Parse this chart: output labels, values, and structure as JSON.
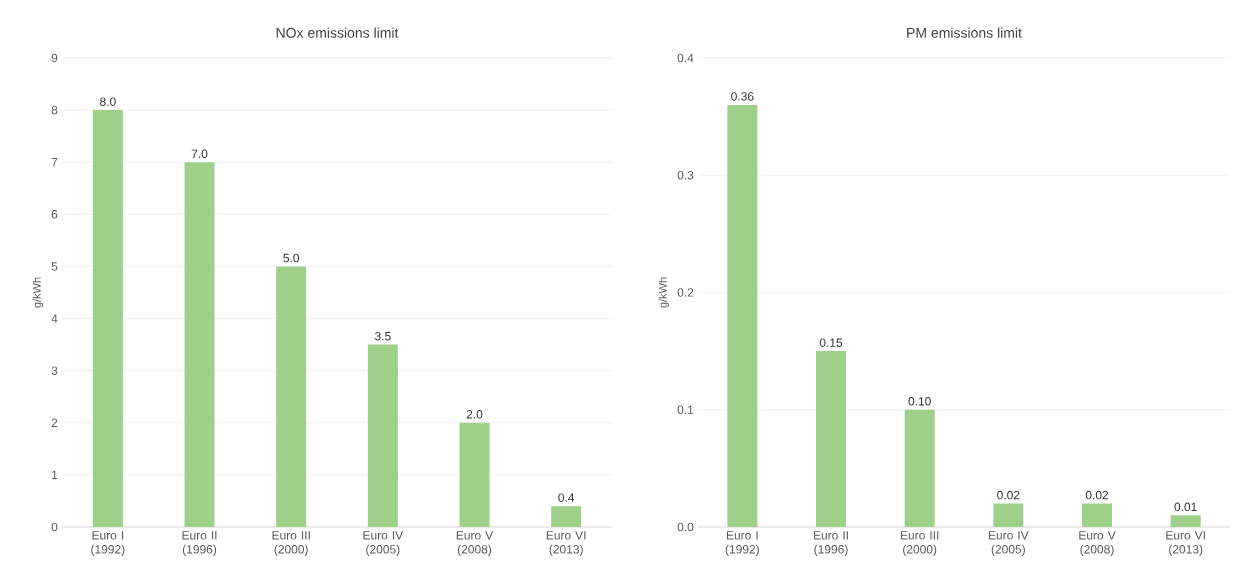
{
  "chart_data": [
    {
      "type": "bar",
      "title": "NOx emissions limit",
      "ylabel": "g/kWh",
      "categories": [
        "Euro I (1992)",
        "Euro II (1996)",
        "Euro III (2000)",
        "Euro IV (2005)",
        "Euro V (2008)",
        "Euro VI (2013)"
      ],
      "values": [
        8.0,
        7.0,
        5.0,
        3.5,
        2.0,
        0.4
      ],
      "value_labels": [
        "8.0",
        "7.0",
        "5.0",
        "3.5",
        "2.0",
        "0.4"
      ],
      "color": "#9fd08a",
      "ylim": [
        0,
        9
      ],
      "yticks": [
        0,
        1,
        2,
        3,
        4,
        5,
        6,
        7,
        8,
        9
      ],
      "grid": "y"
    },
    {
      "type": "bar",
      "title": "PM emissions limit",
      "ylabel": "g/kWh",
      "categories": [
        "Euro I (1992)",
        "Euro II (1996)",
        "Euro III (2000)",
        "Euro IV (2005)",
        "Euro V (2008)",
        "Euro VI (2013)"
      ],
      "values": [
        0.36,
        0.15,
        0.1,
        0.02,
        0.02,
        0.01
      ],
      "value_labels": [
        "0.36",
        "0.15",
        "0.10",
        "0.02",
        "0.02",
        "0.01"
      ],
      "color": "#9fd08a",
      "ylim": [
        0,
        0.4
      ],
      "yticks": [
        {
          "value": 0,
          "label": "0.0"
        },
        {
          "value": 0.1,
          "label": "0.1"
        },
        {
          "value": 0.2,
          "label": "0.2"
        },
        {
          "value": 0.3,
          "label": "0.3"
        },
        {
          "value": 0.4,
          "label": "0.4"
        }
      ],
      "grid": "y"
    }
  ]
}
